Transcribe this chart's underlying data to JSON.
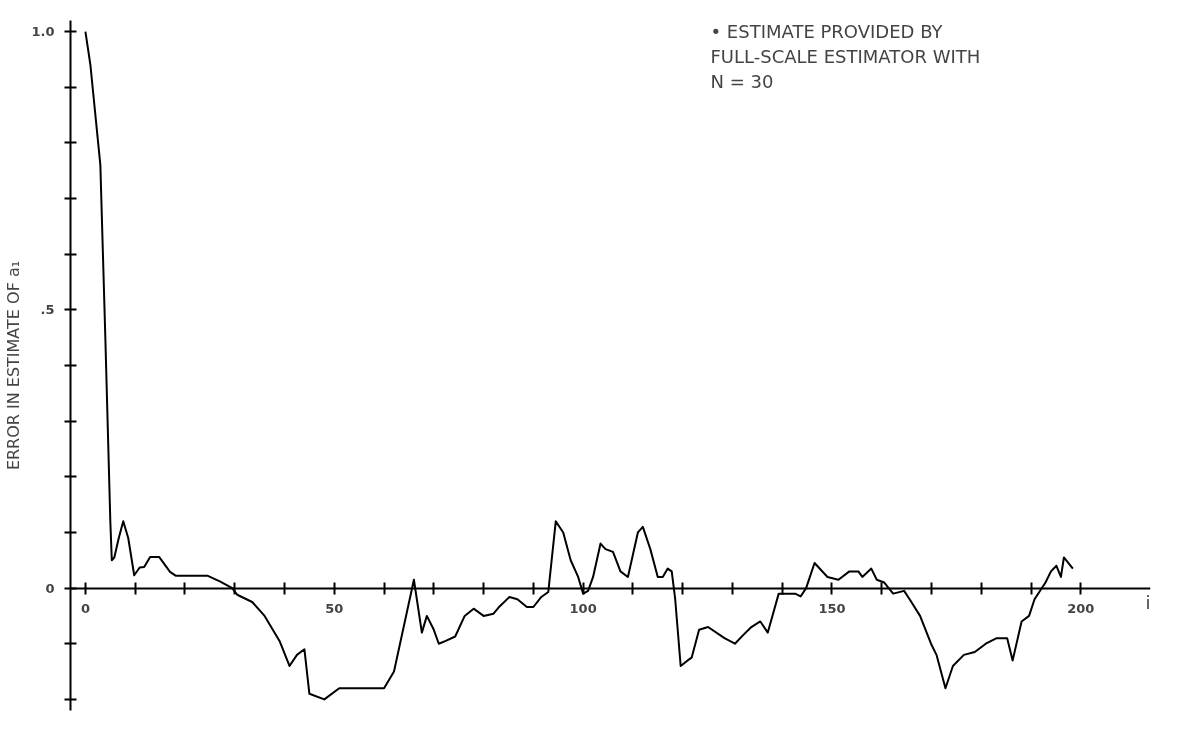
{
  "chart_data": {
    "type": "line",
    "xlabel": "i",
    "ylabel": "ERROR IN ESTIMATE OF a₁",
    "annotations": [
      "• ESTIMATE PROVIDED BY\nFULL-SCALE ESTIMATOR WITH\nN  =  30"
    ],
    "x": [
      0,
      1,
      3,
      4,
      5,
      5.3,
      5.8,
      6.7,
      7.6,
      8.6,
      9.8,
      10.9,
      11.8,
      13,
      14.8,
      17,
      18.2,
      24.6,
      27,
      29.5,
      30.5,
      33.5,
      36,
      39,
      41,
      42.5,
      44,
      45,
      48,
      51,
      52,
      60,
      62,
      66,
      67.6,
      68.6,
      70,
      71,
      72.4,
      74.3,
      76.2,
      78,
      80,
      82,
      83,
      85.2,
      86.8,
      88.7,
      90,
      91.6,
      93,
      94.5,
      96,
      97.5,
      99,
      100,
      101,
      102,
      103.5,
      104.5,
      106,
      107.5,
      109,
      110,
      111,
      112,
      113.5,
      115,
      116,
      117,
      117.8,
      118.5,
      119.6,
      121,
      121.8,
      123.3,
      125.1,
      128.4,
      130.5,
      132.1,
      133.8,
      135.6,
      137.1,
      139.3,
      142.6,
      143.7,
      144.8,
      146.5,
      149.1,
      151.3,
      153.5,
      155.3,
      156.1,
      157.9,
      159,
      160.5,
      162.3,
      164.5,
      165.6,
      167.7,
      169.9,
      171,
      172.8,
      174.3,
      176.5,
      178.7,
      180.9,
      183.1,
      185.2,
      186.3,
      188.1,
      189.6,
      190.7,
      192.9,
      194,
      195.1,
      196,
      196.6,
      198.4
    ],
    "series": [
      {
        "color": "#000000",
        "values": [
          1.0,
          0.94,
          0.76,
          0.45,
          0.12,
          0.05,
          0.055,
          0.09,
          0.12,
          0.09,
          0.023,
          0.037,
          0.038,
          0.056,
          0.056,
          0.029,
          0.022,
          0.022,
          0.012,
          0,
          -0.012,
          -0.025,
          -0.05,
          -0.095,
          -0.14,
          -0.12,
          -0.11,
          -0.19,
          -0.2,
          -0.18,
          -0.18,
          -0.18,
          -0.15,
          0.015,
          -0.08,
          -0.05,
          -0.075,
          -0.1,
          -0.095,
          -0.087,
          -0.05,
          -0.037,
          -0.05,
          -0.046,
          -0.035,
          -0.016,
          -0.02,
          -0.034,
          -0.034,
          -0.016,
          -0.007,
          0.12,
          0.1,
          0.05,
          0.02,
          -0.01,
          -0.005,
          0.02,
          0.08,
          0.07,
          0.065,
          0.03,
          0.02,
          0.06,
          0.1,
          0.11,
          0.07,
          0.02,
          0.02,
          0.035,
          0.03,
          -0.02,
          -0.14,
          -0.13,
          -0.125,
          -0.075,
          -0.07,
          -0.09,
          -0.1,
          -0.085,
          -0.07,
          -0.06,
          -0.08,
          -0.01,
          -0.01,
          -0.015,
          0.0,
          0.045,
          0.02,
          0.015,
          0.03,
          0.03,
          0.02,
          0.035,
          0.015,
          0.01,
          -0.01,
          -0.005,
          -0.02,
          -0.05,
          -0.1,
          -0.12,
          -0.18,
          -0.14,
          -0.12,
          -0.115,
          -0.1,
          -0.09,
          -0.09,
          -0.13,
          -0.06,
          -0.05,
          -0.02,
          0.01,
          0.03,
          0.04,
          0.02,
          0.055,
          0.035
        ]
      }
    ],
    "xlim": [
      -3,
      214
    ],
    "ylim": [
      -0.22,
      1.02
    ],
    "xticks": [
      0,
      {
        "value": 10,
        "label": null
      },
      {
        "value": 20,
        "label": null
      },
      {
        "value": 30,
        "label": null
      },
      {
        "value": 40,
        "label": null
      },
      50,
      {
        "value": 60,
        "label": null
      },
      {
        "value": 70,
        "label": null
      },
      {
        "value": 80,
        "label": null
      },
      {
        "value": 90,
        "label": null
      },
      100,
      {
        "value": 110,
        "label": null
      },
      {
        "value": 120,
        "label": null
      },
      {
        "value": 130,
        "label": null
      },
      {
        "value": 140,
        "label": null
      },
      150,
      {
        "value": 160,
        "label": null
      },
      {
        "value": 170,
        "label": null
      },
      {
        "value": 180,
        "label": null
      },
      {
        "value": 190,
        "label": null
      },
      200
    ],
    "yticks": [
      {
        "value": -0.2,
        "label": null
      },
      {
        "value": -0.1,
        "label": null
      },
      0,
      {
        "value": 0.1,
        "label": null
      },
      {
        "value": 0.2,
        "label": null
      },
      {
        "value": 0.3,
        "label": null
      },
      {
        "value": 0.4,
        "label": null
      },
      {
        "value": 0.5,
        "label": ".5"
      },
      {
        "value": 0.6,
        "label": null
      },
      {
        "value": 0.7,
        "label": null
      },
      {
        "value": 0.8,
        "label": null
      },
      {
        "value": 0.9,
        "label": null
      },
      {
        "value": 1.0,
        "label": "1.0"
      }
    ],
    "grid": false,
    "marker": "none",
    "line_style": "solid"
  }
}
